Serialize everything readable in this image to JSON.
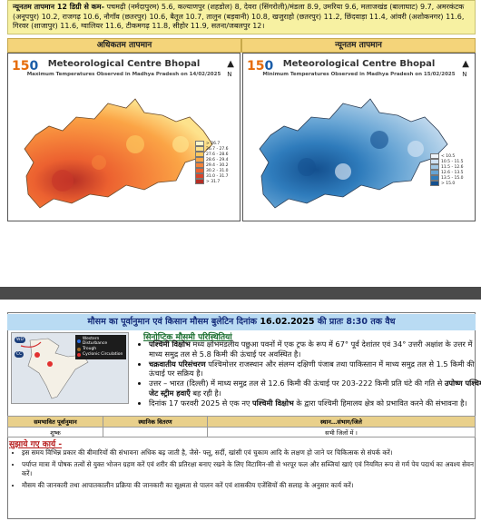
{
  "banner": {
    "lead": "न्यूनतम तापमान 12 डिग्री से कम-",
    "text": " पचमढ़ी (नर्मदापुरम) 5.6, कल्याणपुर (शहडोल) 8, देवरा (सिंगरोली)/मंडला 8.9, उमरिया 9.6, मलाजखंड (बालाघाट) 9.7, अमरकंटक (अनूपपुर) 10.2, राजगढ़ 10.6, नौगाँव (छतरपुर) 10.6, बैतूल 10.7, तालुन (बड़वानी) 10.8, खजुराहो (छतरपुर) 11.2, छिंदवाड़ा 11.4, आंवरी (अशोकनगर) 11.6, गिरवर (शाजापुर) 11.6, ग्वालियर 11.6, टीकमगढ़ 11.8, सीहोर 11.9, सतना/जबलपुर 12।"
  },
  "temp_headers": {
    "max": "अधिकतम तापमान",
    "min": "न्यूनतम तापमान"
  },
  "maps": {
    "logo_num": "15",
    "logo_zero": "0",
    "north": "N",
    "left": {
      "title": "Meteorological Centre Bhopal",
      "subtitle": "Maximum Temperatures Observed in Madhya Pradesh on 14/02/2025",
      "legend": [
        "> 26.7",
        "26.7 - 27.6",
        "27.6 - 28.6",
        "28.6 - 29.4",
        "29.4 - 30.2",
        "30.2 - 31.0",
        "31.0 - 31.7",
        "> 31.7"
      ],
      "legend_colors": [
        "#fff5c8",
        "#fde28c",
        "#fcc65e",
        "#fba546",
        "#f5833a",
        "#ec6130",
        "#d9432a",
        "#b52e25"
      ]
    },
    "right": {
      "title": "Meteorological Centre Bhopal",
      "subtitle": "Minimum Temperatures Observed in Madhya Pradesh on 15/02/2025",
      "legend": [
        "< 10.5",
        "10.5 - 11.5",
        "11.5 - 12.6",
        "12.6 - 13.5",
        "13.5 - 15.0",
        "> 15.0"
      ],
      "legend_colors": [
        "#eef4fb",
        "#cfe1f2",
        "#9fc6e4",
        "#66a4d4",
        "#2f7cbc",
        "#14508f"
      ]
    }
  },
  "bulletin": {
    "title_pre": "मौसम का पूर्वानुमान एवं किसान मौसम बुलेटिन दिनांक ",
    "title_date": "16.02.2025",
    "title_mid": " की प्रातः 8:30 तक वैध",
    "wx_legend": [
      "Western Disturbance",
      "Trough",
      "Cyclonic Circulation"
    ],
    "wx_labels": [
      "WD",
      "CC"
    ],
    "synoptic_title": "सिनोप्टिक मौसमी परिस्थितियां",
    "items": [
      {
        "bold": "पश्चिमी विक्षोभ",
        "text": " मध्य क्षोभमंडलीय पछुआ पवनों में एक ट्रफ के रूप में 67° पूर्व देशांतर एवं 34° उत्तरी अक्षांश के उत्तर में माध्य समुद्र तल से 5.8 किमी की ऊंचाई पर अवस्थित है।"
      },
      {
        "bold": "चक्रवातीय परिसंचरण",
        "text": " पश्चिमोत्तर राजस्थान और संलग्न दक्षिणी पंजाब तथा पाकिस्तान में माध्य समुद्र तल से 1.5 किमी की ऊंचाई पर सक्रिय है।"
      },
      {
        "pre": "उत्तर – भारत (दिल्ली) में माध्य समुद्र तल से 12.6 किमी की ऊंचाई पर 203-222 किमी प्रति घंटे की गति से ",
        "bold": "उपोष्ण पश्चिमी जेट स्ट्रीम हवाएँ",
        "text": " बह रही है।"
      },
      {
        "pre": "दिनांक 17 फरवरी 2025 से एक नए ",
        "bold": "पश्चिमी विक्षोभ",
        "text": " के द्वारा पश्चिमी हिमालय क्षेत्र को प्रभावित करने की संभावना है।"
      }
    ]
  },
  "table": {
    "headers": [
      "समभावित पूर्वानुमान",
      "स्थानिक वितरण",
      "स्थान…संभाग/जिले"
    ],
    "row": [
      "शुष्क",
      "",
      "सभी जिलों में ।"
    ]
  },
  "suggestions": {
    "title": "सुझाये गए कार्य -",
    "items": [
      "इस समय विभिन्न प्रकार की बीमारियों की संभावना अधिक बढ़ जाती है, जैसे- फ्लू, सर्दी, खांसी एवं चुकाम आदि के लक्षण हो जाने पर चिकित्सक से संपर्क करें।",
      "पर्याप्त मात्रा में पोषक तत्वों से युक्त भोजन ग्रहण करें एवं शरीर की प्रतिरक्षा बनाए रखने के लिए विटामिन-सी से भरपूर फल और सब्जियां खाएं एवं नियमित रूप से गर्म पेय पदार्थ का अवश्य सेवन करें।",
      "मौसम की जानकारी तथा आपातकालीन प्रक्रिया की जानकारी का सूक्ष्मता से पालन करें एवं शासकीय एजेंसियों की सलाह के अनुसार कार्य करें।"
    ]
  }
}
